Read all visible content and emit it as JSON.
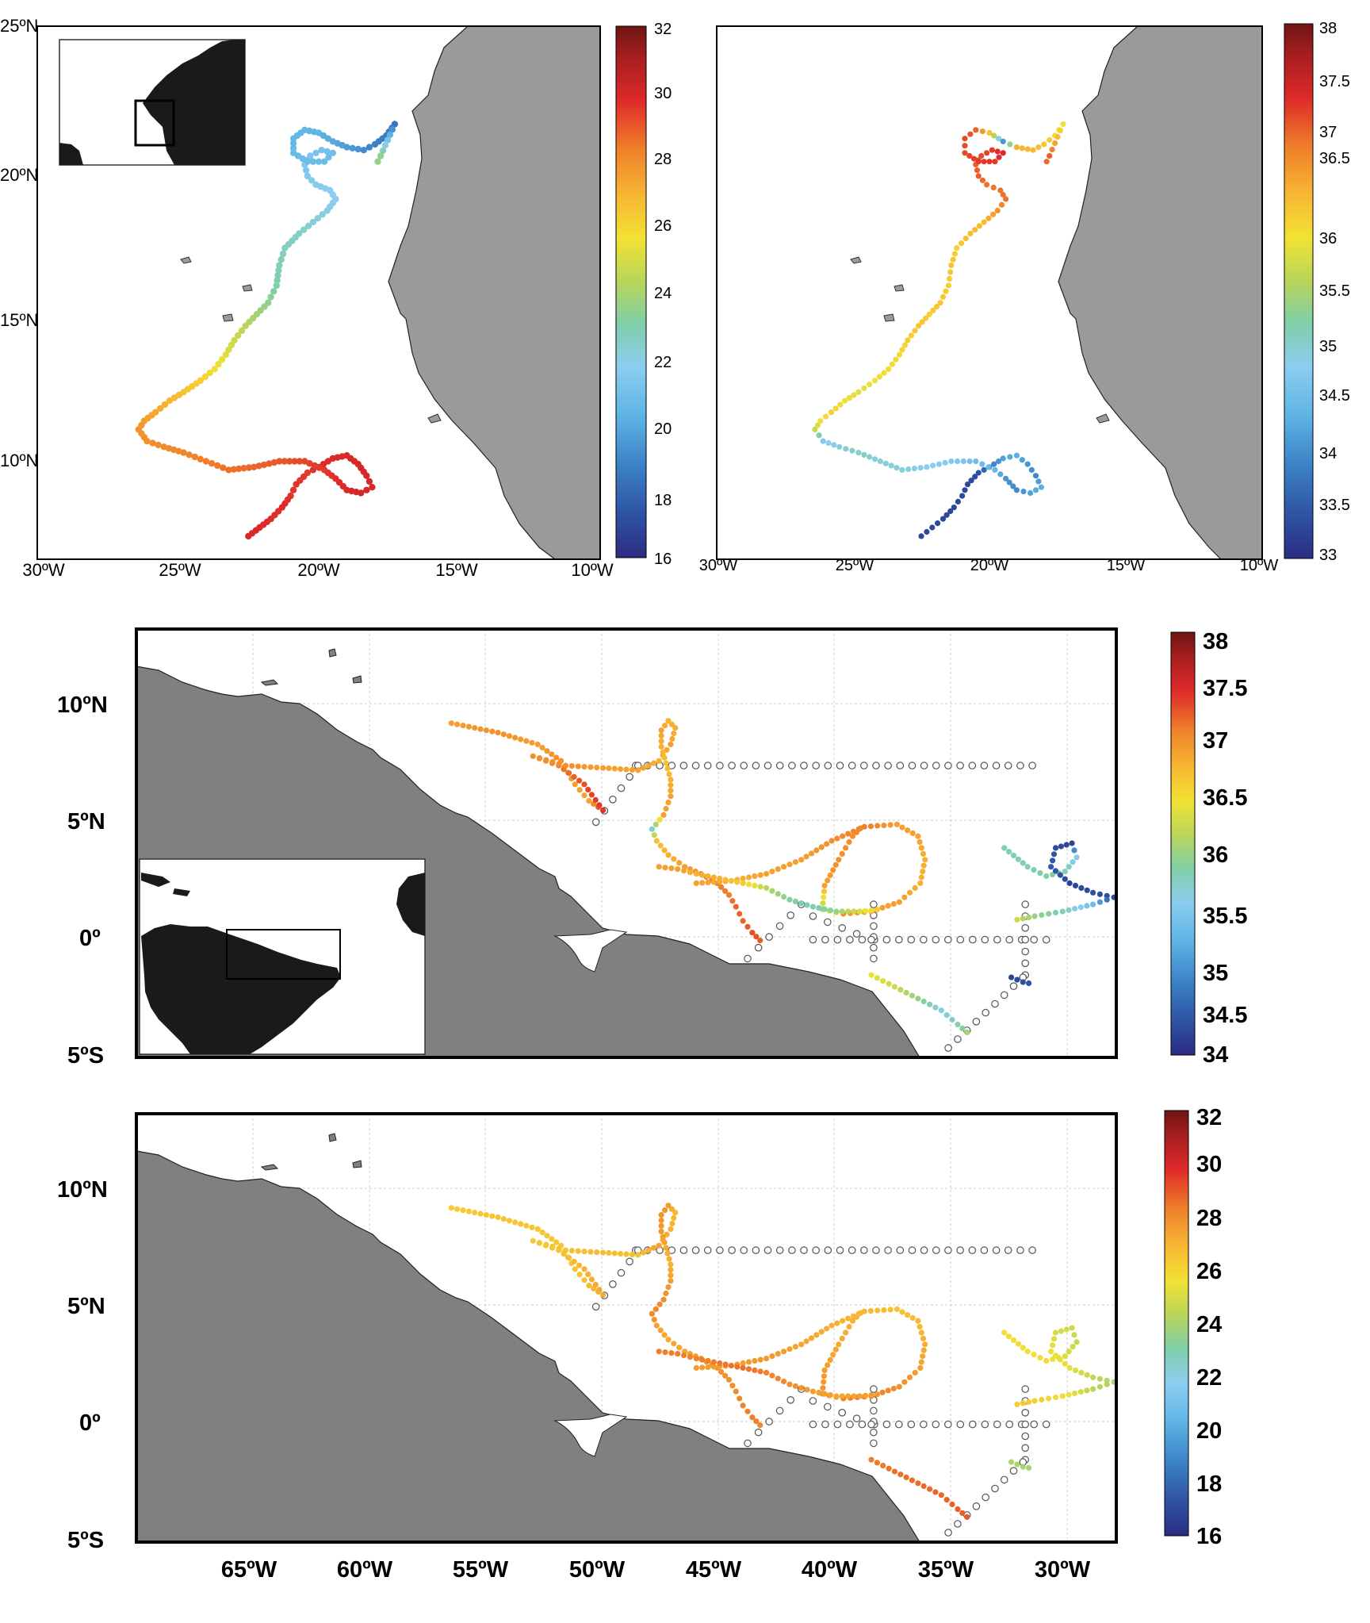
{
  "colors": {
    "land_dark": "#808080",
    "land_light": "#9a9a9a",
    "inset_land": "#1a1a1a",
    "grid": "#cccccc",
    "jet": [
      "#2b2c82",
      "#2f52a3",
      "#3a80c5",
      "#5fb5e5",
      "#8ccdf0",
      "#7fcfa8",
      "#b9d55a",
      "#f2e233",
      "#f7b733",
      "#ef7f2a",
      "#de2a2a",
      "#a81e1e",
      "#6e1514"
    ]
  },
  "panels": [
    {
      "id": "p1",
      "x_ticks": [
        "30ºW",
        "25ºW",
        "20ºW",
        "15ºW",
        "10ºW"
      ],
      "y_ticks": [
        "25ºN",
        "20ºN",
        "15ºN",
        "10ºN"
      ],
      "colorbar": {
        "min": 16,
        "max": 32,
        "ticks": [
          "32",
          "30",
          "28",
          "26",
          "24",
          "22",
          "20",
          "18",
          "16"
        ]
      }
    },
    {
      "id": "p2",
      "x_ticks": [
        "30ºW",
        "25ºW",
        "20ºW",
        "15ºW",
        "10ºW"
      ],
      "colorbar": {
        "min": 33,
        "max": 38,
        "ticks": [
          "38",
          "37.5",
          "37",
          "36.5",
          "36",
          "35.5",
          "35",
          "34.5",
          "34",
          "33.5",
          "33"
        ]
      }
    },
    {
      "id": "p3",
      "y_ticks": [
        "10ºN",
        "5ºN",
        "0º",
        "5ºS"
      ],
      "colorbar": {
        "min": 34,
        "max": 38,
        "ticks": [
          "38",
          "37.5",
          "37",
          "36.5",
          "36",
          "35.5",
          "35",
          "34.5",
          "34"
        ]
      }
    },
    {
      "id": "p4",
      "x_ticks": [
        "65ºW",
        "60ºW",
        "55ºW",
        "50ºW",
        "45ºW",
        "40ºW",
        "35ºW",
        "30ºW"
      ],
      "y_ticks": [
        "10ºN",
        "5ºN",
        "0º",
        "5ºS"
      ],
      "colorbar": {
        "min": 16,
        "max": 32,
        "ticks": [
          "32",
          "30",
          "28",
          "26",
          "24",
          "22",
          "20",
          "18",
          "16"
        ]
      }
    }
  ],
  "tracks": {
    "east_atlantic": [
      [
        -22.5,
        7.3
      ],
      [
        -22.1,
        7.6
      ],
      [
        -21.7,
        7.9
      ],
      [
        -21.3,
        8.3
      ],
      [
        -21.0,
        8.7
      ],
      [
        -20.8,
        9.1
      ],
      [
        -20.4,
        9.5
      ],
      [
        -20.0,
        9.7
      ],
      [
        -19.5,
        10.0
      ],
      [
        -19.0,
        10.1
      ],
      [
        -18.6,
        9.8
      ],
      [
        -18.3,
        9.4
      ],
      [
        -18.1,
        9.0
      ],
      [
        -18.5,
        8.8
      ],
      [
        -19.0,
        8.9
      ],
      [
        -19.4,
        9.3
      ],
      [
        -19.8,
        9.6
      ],
      [
        -20.5,
        9.9
      ],
      [
        -21.4,
        9.9
      ],
      [
        -22.3,
        9.7
      ],
      [
        -23.2,
        9.6
      ],
      [
        -24.0,
        9.9
      ],
      [
        -24.8,
        10.2
      ],
      [
        -25.5,
        10.4
      ],
      [
        -26.1,
        10.6
      ],
      [
        -26.4,
        11.0
      ],
      [
        -26.2,
        11.3
      ],
      [
        -25.8,
        11.6
      ],
      [
        -25.3,
        12.0
      ],
      [
        -24.8,
        12.3
      ],
      [
        -24.2,
        12.7
      ],
      [
        -23.7,
        13.1
      ],
      [
        -23.3,
        13.6
      ],
      [
        -23.0,
        14.1
      ],
      [
        -22.6,
        14.6
      ],
      [
        -22.2,
        15.0
      ],
      [
        -21.8,
        15.4
      ],
      [
        -21.5,
        16.0
      ],
      [
        -21.4,
        16.7
      ],
      [
        -21.2,
        17.3
      ],
      [
        -20.7,
        17.8
      ],
      [
        -20.2,
        18.2
      ],
      [
        -19.7,
        18.6
      ],
      [
        -19.4,
        19.0
      ],
      [
        -19.6,
        19.3
      ],
      [
        -20.1,
        19.5
      ],
      [
        -20.4,
        19.8
      ],
      [
        -20.5,
        20.2
      ],
      [
        -20.3,
        20.5
      ],
      [
        -19.9,
        20.7
      ],
      [
        -19.5,
        20.6
      ],
      [
        -19.8,
        20.3
      ],
      [
        -20.4,
        20.3
      ],
      [
        -20.9,
        20.6
      ],
      [
        -20.9,
        21.1
      ],
      [
        -20.5,
        21.4
      ],
      [
        -20.0,
        21.3
      ],
      [
        -19.5,
        21.0
      ],
      [
        -19.0,
        20.8
      ],
      [
        -18.4,
        20.7
      ],
      [
        -18.0,
        20.9
      ],
      [
        -17.6,
        21.2
      ],
      [
        -17.3,
        21.6
      ],
      [
        -17.8,
        20.5
      ],
      [
        -18.0,
        20.1
      ]
    ],
    "east_temp": [
      29.5,
      29.4,
      29.3,
      29.3,
      29.2,
      29.2,
      29.1,
      29.3,
      29.4,
      29.5,
      29.5,
      29.6,
      29.5,
      29.6,
      29.4,
      29.3,
      29.1,
      28.9,
      28.6,
      28.4,
      28.2,
      28.0,
      27.8,
      27.7,
      27.6,
      27.5,
      27.3,
      27.0,
      26.7,
      26.3,
      25.9,
      25.4,
      24.9,
      24.5,
      24.0,
      23.5,
      23.0,
      22.6,
      22.4,
      22.2,
      22.0,
      21.8,
      21.6,
      21.4,
      21.3,
      21.2,
      21.1,
      21.0,
      20.9,
      20.7,
      20.5,
      20.4,
      20.4,
      20.3,
      20.2,
      20.1,
      20.0,
      19.7,
      19.4,
      19.0,
      18.7,
      18.5,
      18.4,
      23.0,
      23.5
    ],
    "east_sal": [
      33.3,
      33.3,
      33.3,
      33.3,
      33.3,
      33.3,
      33.4,
      33.8,
      34.1,
      34.2,
      34.0,
      33.9,
      34.2,
      34.1,
      33.9,
      34.0,
      34.3,
      34.4,
      34.6,
      34.7,
      34.8,
      34.8,
      34.9,
      34.8,
      34.6,
      35.6,
      35.9,
      36.1,
      35.9,
      35.8,
      35.9,
      36.0,
      36.0,
      36.1,
      36.2,
      36.1,
      36.2,
      36.1,
      36.2,
      36.1,
      36.3,
      36.3,
      36.6,
      36.8,
      36.8,
      36.8,
      36.9,
      36.9,
      37.0,
      37.1,
      37.2,
      37.1,
      37.1,
      37.0,
      37.0,
      36.9,
      36.2,
      34.0,
      36.4,
      36.3,
      36.2,
      36.0,
      35.9,
      36.9,
      36.8
    ],
    "west_tracks": [
      {
        "pts": [
          [
            -56.5,
            9.2
          ],
          [
            -54.5,
            8.8
          ],
          [
            -52.8,
            8.3
          ],
          [
            -51.8,
            7.6
          ],
          [
            -51.2,
            6.6
          ],
          [
            -50.6,
            5.9
          ],
          [
            -50.0,
            5.5
          ],
          [
            -50.8,
            6.6
          ],
          [
            -51.9,
            7.4
          ],
          [
            -53.0,
            7.8
          ],
          [
            -51.6,
            7.4
          ],
          [
            -50.0,
            7.3
          ],
          [
            -48.5,
            7.2
          ],
          [
            -47.6,
            7.6
          ],
          [
            -47.1,
            8.3
          ],
          [
            -46.9,
            9.0
          ],
          [
            -47.2,
            9.3
          ],
          [
            -47.5,
            8.9
          ],
          [
            -47.5,
            8.2
          ],
          [
            -47.3,
            7.5
          ],
          [
            -47.1,
            6.8
          ],
          [
            -47.1,
            6.1
          ],
          [
            -47.4,
            5.3
          ],
          [
            -47.9,
            4.7
          ],
          [
            -47.7,
            4.2
          ],
          [
            -47.2,
            3.6
          ],
          [
            -46.5,
            3.1
          ],
          [
            -45.8,
            2.8
          ],
          [
            -45.1,
            2.4
          ],
          [
            -44.6,
            1.9
          ],
          [
            -44.3,
            1.4
          ],
          [
            -44.0,
            0.8
          ],
          [
            -43.6,
            0.3
          ],
          [
            -43.1,
            -0.2
          ]
        ],
        "sal": [
          36.8,
          36.9,
          36.8,
          36.9,
          36.8,
          36.8,
          37.3,
          37.2,
          37.0,
          36.9,
          36.9,
          36.8,
          36.8,
          36.7,
          36.8,
          36.7,
          36.7,
          36.8,
          36.7,
          36.6,
          36.7,
          36.8,
          36.8,
          35.5,
          36.6,
          36.7,
          36.8,
          36.9,
          37.0,
          37.0,
          37.1,
          37.1,
          37.2,
          37.1
        ],
        "temp": [
          26.0,
          26.2,
          26.3,
          26.1,
          26.2,
          26.5,
          27.0,
          26.8,
          26.3,
          26.1,
          26.3,
          26.5,
          26.4,
          27.2,
          26.8,
          26.6,
          27.3,
          27.5,
          27.4,
          27.0,
          26.8,
          27.3,
          27.7,
          27.8,
          27.2,
          27.0,
          27.1,
          27.3,
          27.5,
          27.6,
          27.7,
          27.9,
          28.0,
          27.8
        ]
      },
      {
        "pts": [
          [
            -46.0,
            2.4
          ],
          [
            -44.5,
            2.5
          ],
          [
            -43.0,
            2.8
          ],
          [
            -41.5,
            3.4
          ],
          [
            -40.2,
            4.2
          ],
          [
            -38.8,
            4.8
          ],
          [
            -37.4,
            4.9
          ],
          [
            -36.5,
            4.4
          ],
          [
            -36.2,
            3.4
          ],
          [
            -36.4,
            2.4
          ],
          [
            -37.3,
            1.6
          ],
          [
            -38.5,
            1.2
          ],
          [
            -39.7,
            1.1
          ],
          [
            -40.6,
            1.3
          ],
          [
            -40.5,
            2.3
          ],
          [
            -39.9,
            3.4
          ],
          [
            -39.3,
            4.4
          ],
          [
            -38.8,
            4.9
          ]
        ],
        "sal": [
          36.8,
          36.7,
          36.8,
          36.8,
          36.9,
          37.0,
          36.8,
          36.8,
          36.7,
          36.7,
          36.8,
          36.8,
          36.9,
          35.9,
          36.8,
          36.9,
          36.9,
          37.0
        ],
        "temp": [
          27.3,
          27.2,
          27.4,
          27.1,
          26.8,
          26.6,
          26.3,
          26.6,
          26.9,
          27.2,
          27.6,
          27.9,
          28.0,
          27.5,
          27.3,
          27.0,
          26.8,
          26.6
        ]
      },
      {
        "pts": [
          [
            -47.6,
            3.1
          ],
          [
            -46.8,
            3.0
          ],
          [
            -46.0,
            2.8
          ],
          [
            -45.0,
            2.6
          ],
          [
            -44.0,
            2.4
          ],
          [
            -43.0,
            2.2
          ],
          [
            -42.0,
            1.7
          ],
          [
            -41.0,
            1.4
          ],
          [
            -40.0,
            1.2
          ],
          [
            -39.0,
            1.2
          ],
          [
            -38.0,
            1.3
          ]
        ],
        "sal": [
          36.8,
          36.8,
          36.7,
          36.7,
          36.5,
          36.0,
          35.7,
          35.6,
          35.8,
          36.2,
          36.6
        ],
        "temp": [
          28.0,
          28.0,
          27.9,
          28.1,
          28.2,
          28.0,
          27.6,
          27.3,
          27.1,
          27.2,
          27.4
        ]
      },
      {
        "pts": [
          [
            -38.5,
            -1.5
          ],
          [
            -37.5,
            -2.0
          ],
          [
            -36.5,
            -2.5
          ],
          [
            -35.5,
            -3.0
          ],
          [
            -34.8,
            -3.6
          ],
          [
            -34.2,
            -4.1
          ]
        ],
        "sal": [
          36.3,
          36.1,
          35.8,
          35.4,
          35.6,
          36.0
        ],
        "temp": [
          28.0,
          28.2,
          28.3,
          28.4,
          28.5,
          28.6
        ]
      },
      {
        "pts": [
          [
            -32.8,
            3.9
          ],
          [
            -31.8,
            3.1
          ],
          [
            -31.0,
            2.7
          ],
          [
            -30.2,
            2.9
          ],
          [
            -29.7,
            3.5
          ],
          [
            -29.9,
            4.1
          ],
          [
            -30.6,
            3.9
          ],
          [
            -30.8,
            3.1
          ],
          [
            -30.0,
            2.4
          ],
          [
            -29.0,
            2.0
          ],
          [
            -28.1,
            1.8
          ],
          [
            -29.0,
            1.5
          ],
          [
            -30.3,
            1.2
          ],
          [
            -31.5,
            1.0
          ],
          [
            -32.5,
            0.8
          ]
        ],
        "sal": [
          35.6,
          35.6,
          35.7,
          35.6,
          35.3,
          34.2,
          34.3,
          34.4,
          34.2,
          34.3,
          34.3,
          35.1,
          35.6,
          35.8,
          36.2
        ],
        "temp": [
          25.5,
          25.4,
          25.6,
          24.8,
          24.3,
          24.5,
          24.7,
          25.2,
          25.0,
          24.2,
          23.8,
          24.0,
          25.5,
          26.0,
          26.0
        ]
      },
      {
        "pts": [
          [
            -32.5,
            -1.6
          ],
          [
            -32.0,
            -1.8
          ],
          [
            -31.5,
            -1.9
          ]
        ],
        "sal": [
          34.2,
          34.3,
          34.4
        ],
        "temp": [
          23.8,
          23.6,
          23.4
        ]
      }
    ],
    "stations": [
      {
        "lon_from": -48.6,
        "lon_to": -31.6,
        "lat": 7.4,
        "n": 34
      },
      {
        "lon_from": -48.5,
        "lon_to": -50.3,
        "lat_from": 7.4,
        "lat_to": 5.0,
        "n": 6
      },
      {
        "lon_from": -41.0,
        "lon_to": -31.0,
        "lat": 0.0,
        "n": 20
      },
      {
        "lon_from": -38.4,
        "lon_to": -38.4,
        "lat_from": 1.5,
        "lat_to": -0.8,
        "n": 6
      },
      {
        "lon_from": -31.9,
        "lon_to": -31.9,
        "lat_from": 1.5,
        "lat_to": -1.5,
        "n": 7
      },
      {
        "lon_from": -41.5,
        "lon_to": -43.8,
        "lat_from": 1.5,
        "lat_to": -0.8,
        "n": 6
      },
      {
        "lon_from": -41.0,
        "lon_to": -38.5,
        "lat_from": 1.0,
        "lat_to": 0.0,
        "n": 5
      },
      {
        "lon_from": -32.0,
        "lon_to": -35.2,
        "lat_from": -1.6,
        "lat_to": -4.6,
        "n": 9
      }
    ]
  }
}
